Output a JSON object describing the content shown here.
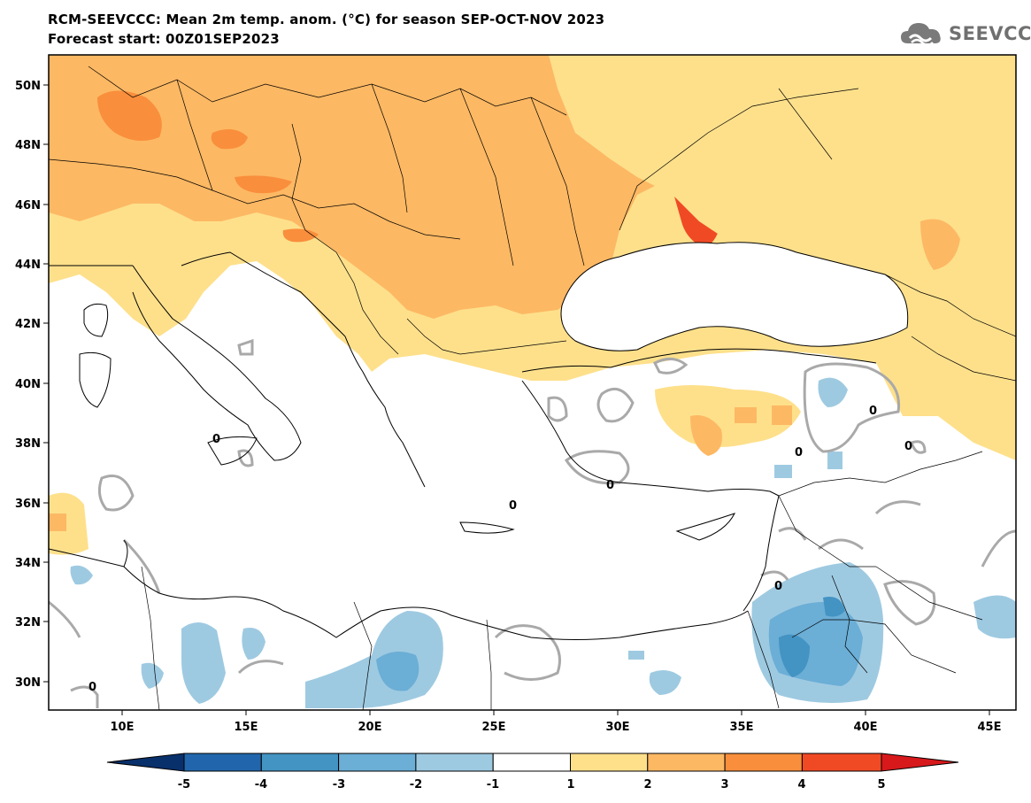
{
  "header": {
    "title": "RCM-SEEVCCC: Mean 2m temp. anom. (°C) for season SEP-OCT-NOV 2023",
    "subtitle": "Forecast start: 00Z01SEP2023"
  },
  "logo": {
    "text": "SEEVCCC",
    "icon": "cloud-icon"
  },
  "map": {
    "lon_ticks": [
      "10E",
      "15E",
      "20E",
      "25E",
      "30E",
      "35E",
      "40E",
      "45E"
    ],
    "lat_ticks": [
      "50N",
      "48N",
      "46N",
      "44N",
      "42N",
      "40N",
      "38N",
      "36N",
      "34N",
      "32N",
      "30N"
    ],
    "contour_labels": [
      "0",
      "0",
      "0",
      "0",
      "0",
      "0",
      "0",
      "0"
    ]
  },
  "colorbar": {
    "tick_labels": [
      "-5",
      "-4",
      "-3",
      "-2",
      "-1",
      "1",
      "2",
      "3",
      "4",
      "5"
    ],
    "colors": [
      "#08306b",
      "#2166ac",
      "#4393c3",
      "#6baed6",
      "#9ecae1",
      "#ffffff",
      "#fee08b",
      "#fdb863",
      "#f98e3c",
      "#f04a25",
      "#d7191c"
    ]
  }
}
